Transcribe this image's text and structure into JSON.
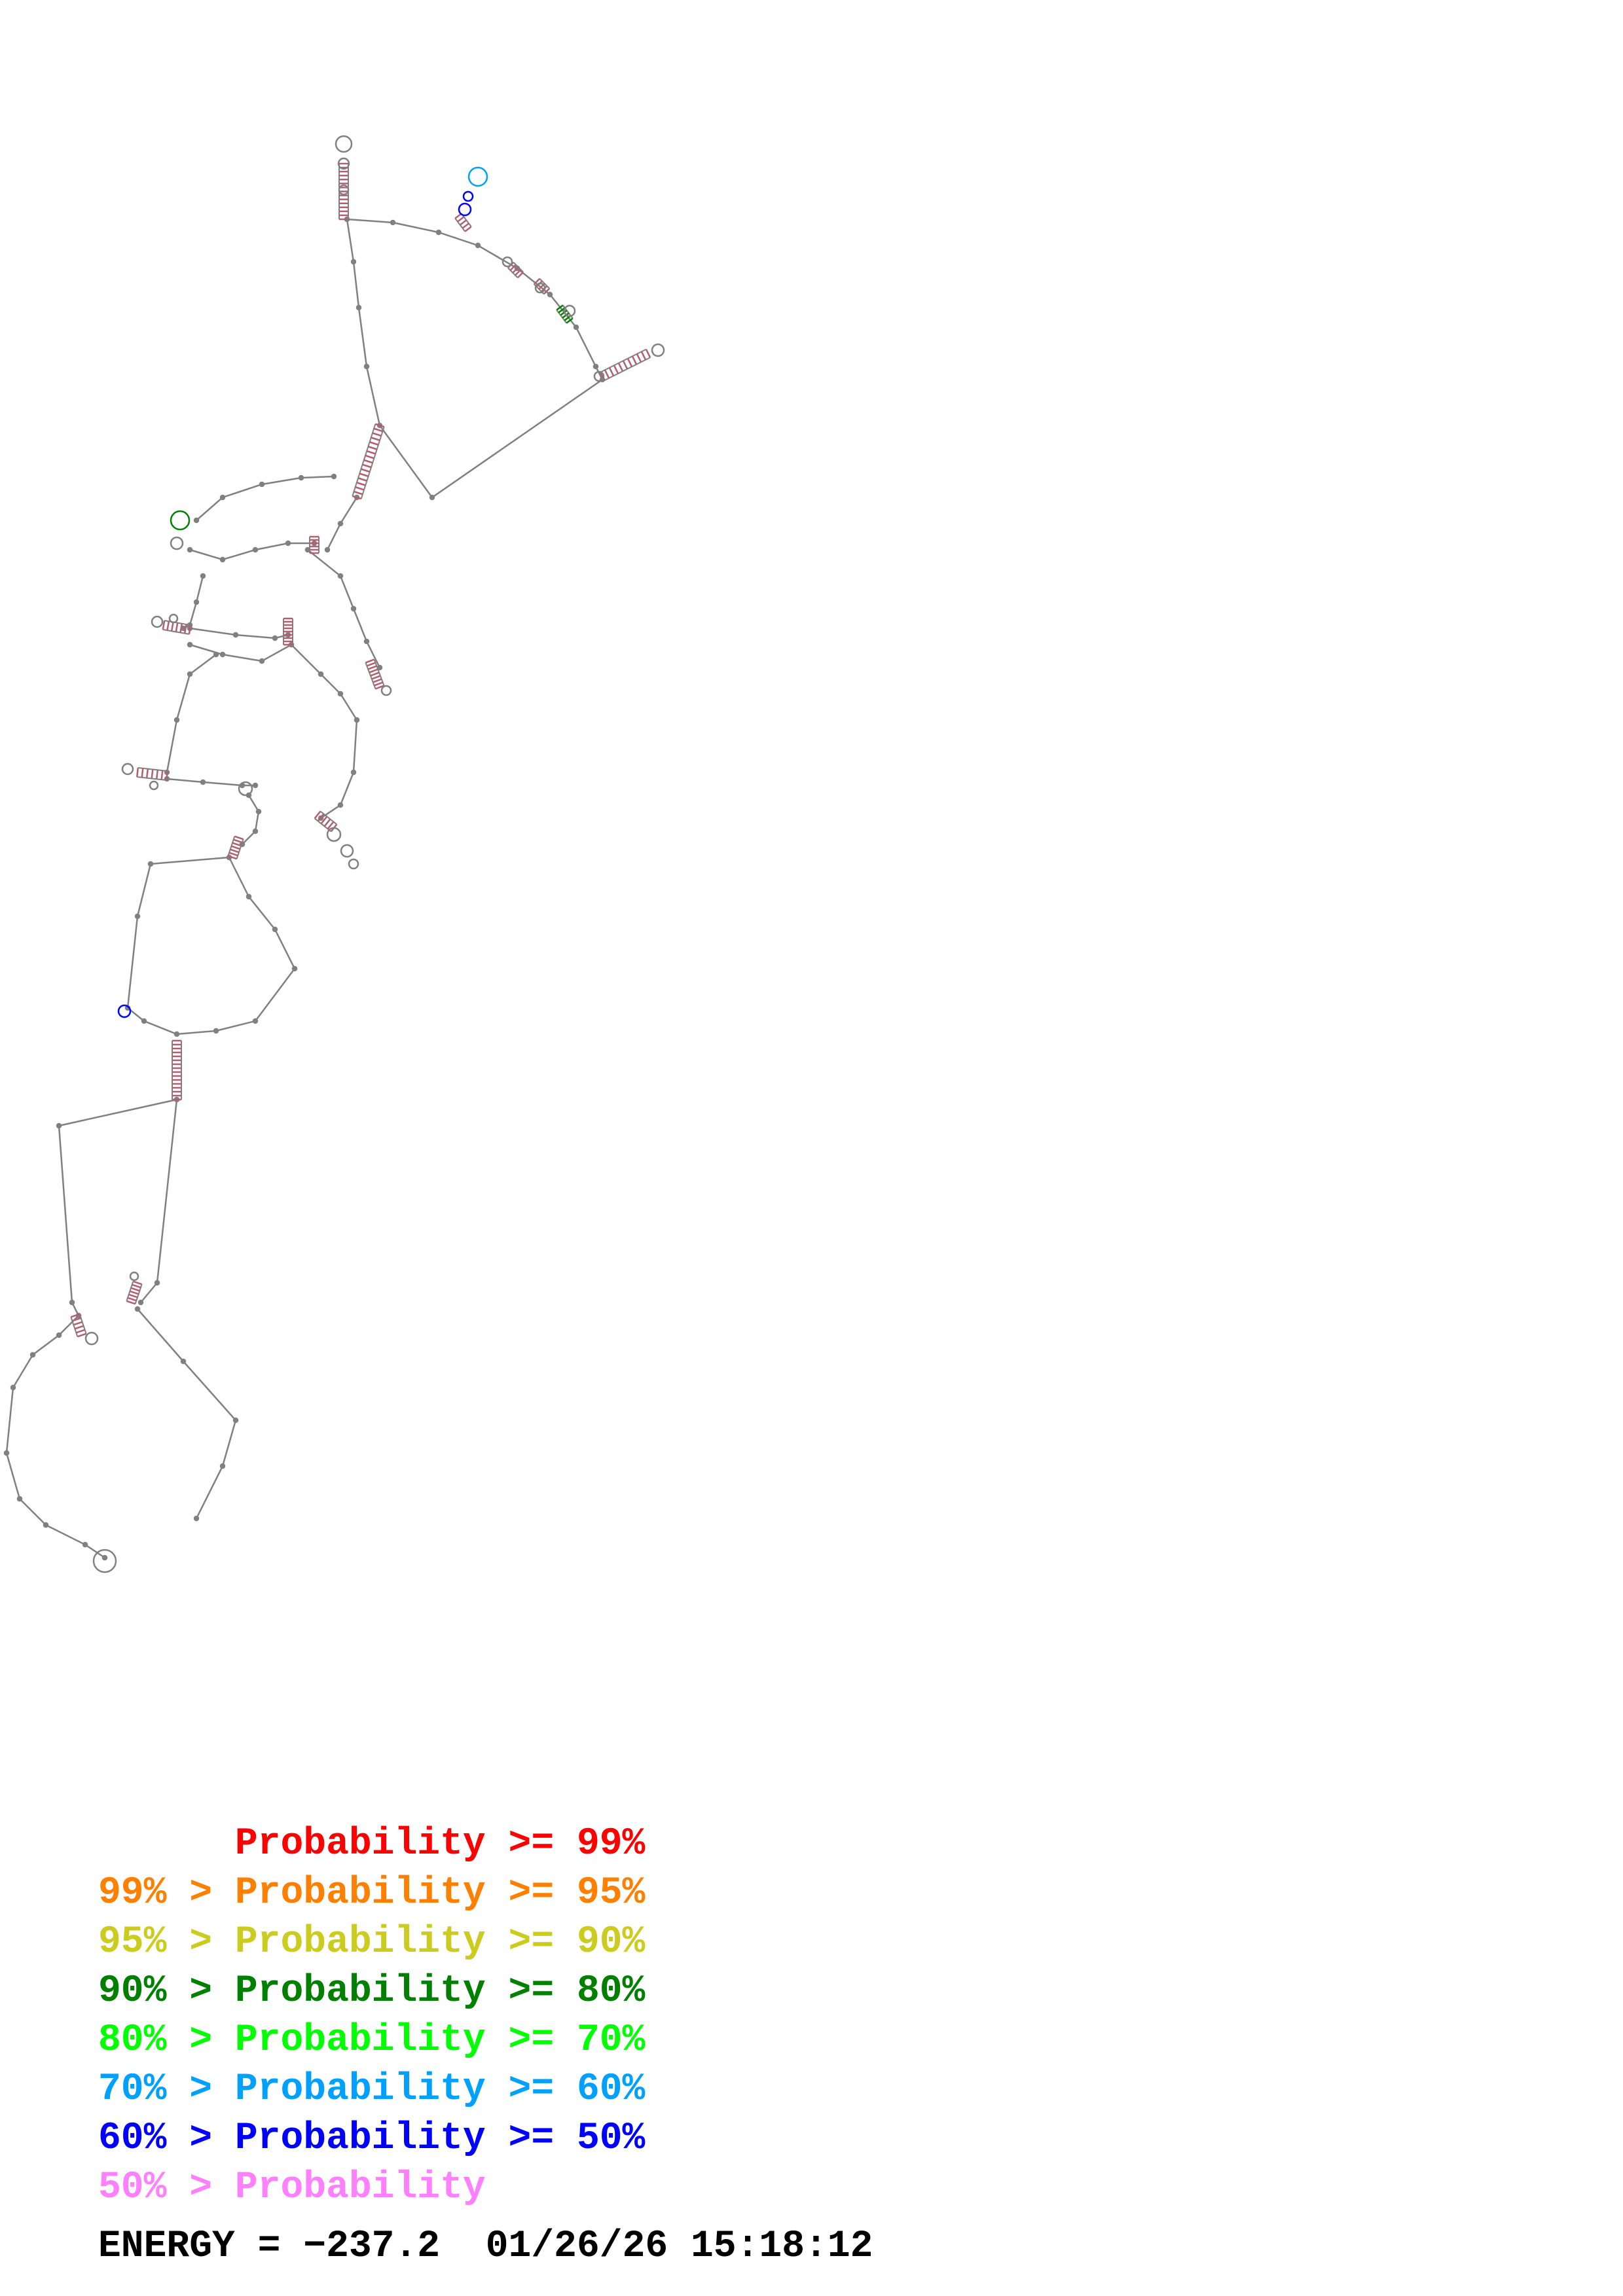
{
  "legend": [
    {
      "prefix": "",
      "label": "Probability",
      "suffix": ">= 99%",
      "color": "#ff0000"
    },
    {
      "prefix": "99% > ",
      "label": "Probability",
      "suffix": ">= 95%",
      "color": "#ff8000"
    },
    {
      "prefix": "95% > ",
      "label": "Probability",
      "suffix": ">= 90%",
      "color": "#cccc20"
    },
    {
      "prefix": "90% > ",
      "label": "Probability",
      "suffix": ">= 80%",
      "color": "#008000"
    },
    {
      "prefix": "80% > ",
      "label": "Probability",
      "suffix": ">= 70%",
      "color": "#00ff00"
    },
    {
      "prefix": "70% > ",
      "label": "Probability",
      "suffix": ">= 60%",
      "color": "#00a0ff"
    },
    {
      "prefix": "60% > ",
      "label": "Probability",
      "suffix": ">= 50%",
      "color": "#0000ff"
    },
    {
      "prefix": "50% > ",
      "label": "Probability",
      "suffix": "",
      "color": "#ff80ff"
    }
  ],
  "footer": {
    "energy_label": "ENERGY =",
    "energy_value": "−237.2",
    "timestamp": "01/26/26 15:18:12"
  },
  "structure": {
    "backbone_color": "#808080",
    "pair_color": "#b06070"
  }
}
